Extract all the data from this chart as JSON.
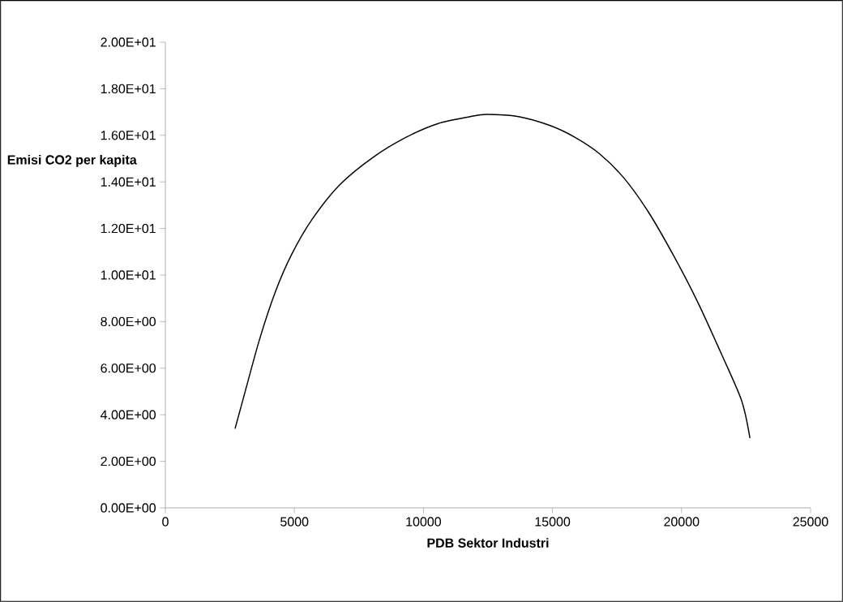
{
  "chart_data": {
    "type": "line",
    "xlabel": "PDB  Sektor Industri",
    "ylabel": "Emisi CO2 per kapita",
    "x": [
      2700,
      3020,
      3640,
      4270,
      4900,
      5690,
      6780,
      8040,
      9300,
      10550,
      11810,
      12440,
      13690,
      14950,
      15890,
      16830,
      17780,
      18720,
      19660,
      20600,
      21550,
      22330,
      22650
    ],
    "series": [
      {
        "color": "#000000",
        "values": [
          3.4,
          4.7,
          7.2,
          9.3,
          10.9,
          12.4,
          13.9,
          15.05,
          15.9,
          16.5,
          16.8,
          16.9,
          16.8,
          16.4,
          15.9,
          15.2,
          14.15,
          12.7,
          10.9,
          8.9,
          6.6,
          4.6,
          3.0
        ]
      }
    ],
    "xlim": [
      0,
      25000
    ],
    "xticks": [
      0,
      5000,
      10000,
      15000,
      20000,
      25000
    ],
    "ylim": [
      0,
      20
    ],
    "yticks": [
      {
        "value": 0,
        "label": "0.00E+00"
      },
      {
        "value": 2,
        "label": "2.00E+00"
      },
      {
        "value": 4,
        "label": "4.00E+00"
      },
      {
        "value": 6,
        "label": "6.00E+00"
      },
      {
        "value": 8,
        "label": "8.00E+00"
      },
      {
        "value": 10,
        "label": "1.00E+01"
      },
      {
        "value": 12,
        "label": "1.20E+01"
      },
      {
        "value": 14,
        "label": "1.40E+01"
      },
      {
        "value": 16,
        "label": "1.60E+01"
      },
      {
        "value": 18,
        "label": "1.80E+01"
      },
      {
        "value": 20,
        "label": "2.00E+01"
      }
    ],
    "grid": false,
    "marker": "none",
    "line_style": "solid"
  }
}
